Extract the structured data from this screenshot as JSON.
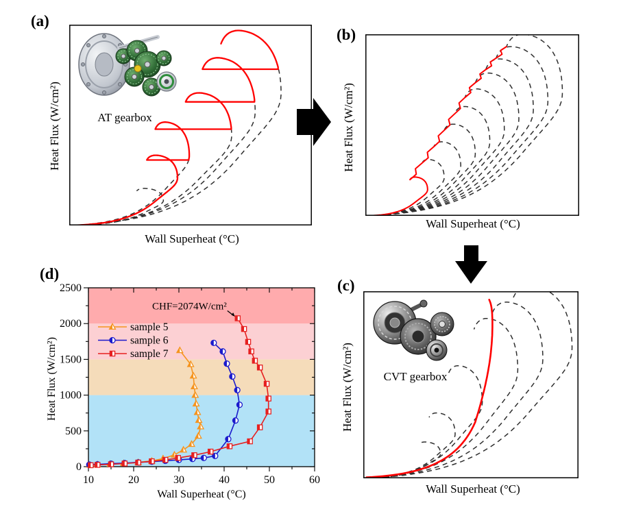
{
  "colors": {
    "background": "#ffffff",
    "red_curve": "#ff0000",
    "dashed_curve": "#2e2e2e",
    "frame": "#000000",
    "arrow": "#000000",
    "sample5": "#F5941E",
    "sample6": "#1A1ACC",
    "sample7": "#E62020",
    "band_0_1000": "#B2E2F7",
    "band_1000_1500": "#F5DCBA",
    "band_1500_2000": "#FCD0D3",
    "band_2000_2500": "#FFABAD"
  },
  "panels": {
    "a": {
      "label": "(a)",
      "caption": "AT gearbox",
      "xlabel": "Wall Superheat (°C)",
      "ylabel": "Heat Flux (W/cm²)"
    },
    "b": {
      "label": "(b)",
      "xlabel": "Wall Superheat (°C)",
      "ylabel": "Heat Flux (W/cm²)"
    },
    "c": {
      "label": "(c)",
      "caption": "CVT gearbox",
      "xlabel": "Wall Superheat (°C)",
      "ylabel": "Heat Flux (W/cm²)"
    },
    "d": {
      "label": "(d)",
      "xlabel": "Wall Superheat (°C)",
      "ylabel": "Heat Flux (W/cm²)"
    }
  },
  "chart_data": [
    {
      "panel": "a",
      "type": "line",
      "style": "schematic",
      "title": "",
      "xlabel": "Wall Superheat (°C)",
      "ylabel": "Heat Flux (W/cm²)",
      "description": "Family of dashed boiling curves; red stepwise path climbs each curve to its CHF tip then jumps horizontally to the next curve (AT gearbox stepped operation).",
      "red_mode": "staircase",
      "red_start_curve": 2,
      "curves_sx": [
        0.4,
        0.46,
        0.51,
        0.69,
        0.79,
        0.9
      ],
      "curves_sy": [
        0.19,
        0.36,
        0.53,
        0.68,
        0.86,
        1.0
      ],
      "axes_numeric": false,
      "grid": false
    },
    {
      "panel": "b",
      "type": "line",
      "style": "schematic",
      "title": "",
      "xlabel": "Wall Superheat (°C)",
      "ylabel": "Heat Flux (W/cm²)",
      "description": "Ten dashed boiling curves; red jagged zigzag line climbs through the successive CHF tips (continuously varying operation).",
      "red_mode": "zigzag",
      "curves_sx": [
        0.3,
        0.38,
        0.46,
        0.53,
        0.6,
        0.67,
        0.74,
        0.81,
        0.88,
        0.95
      ],
      "curves_sy": [
        0.22,
        0.32,
        0.42,
        0.52,
        0.62,
        0.72,
        0.81,
        0.89,
        0.96,
        1.03
      ],
      "axes_numeric": false,
      "grid": false
    },
    {
      "panel": "c",
      "type": "line",
      "style": "schematic",
      "title": "",
      "xlabel": "Wall Superheat (°C)",
      "ylabel": "Heat Flux (W/cm²)",
      "description": "Dashed boiling curves with a single smooth steep red boiling curve (CVT gearbox continuous operation).",
      "red_mode": "smooth",
      "curves_sx": [
        0.37,
        0.44,
        0.57,
        0.74,
        0.86,
        1.0
      ],
      "curves_sy": [
        0.2,
        0.36,
        0.62,
        0.88,
        0.97,
        1.06
      ],
      "axes_numeric": false,
      "grid": false
    },
    {
      "panel": "d",
      "type": "scatter-line",
      "title": "",
      "xlabel": "Wall Superheat (°C)",
      "ylabel": "Heat Flux (W/cm²)",
      "xlim": [
        10,
        60
      ],
      "ylim": [
        0,
        2500
      ],
      "xticks": [
        10,
        20,
        30,
        40,
        50,
        60
      ],
      "yticks": [
        0,
        500,
        1000,
        1500,
        2000,
        2500
      ],
      "x_minor_step": 5,
      "y_minor_step": 250,
      "grid": false,
      "legend_position": "upper-left",
      "bands": [
        {
          "y0": 0,
          "y1": 1000,
          "color": "#B2E2F7"
        },
        {
          "y0": 1000,
          "y1": 1500,
          "color": "#F5DCBA"
        },
        {
          "y0": 1500,
          "y1": 2000,
          "color": "#FCD0D3"
        },
        {
          "y0": 2000,
          "y1": 2500,
          "color": "#FFABAD"
        }
      ],
      "series": [
        {
          "name": "sample 5",
          "color": "#F5941E",
          "marker": "triangle",
          "points": [
            [
              10.3,
              25
            ],
            [
              12,
              30
            ],
            [
              14.8,
              38
            ],
            [
              17.8,
              47
            ],
            [
              21,
              60
            ],
            [
              24,
              80
            ],
            [
              26.5,
              112
            ],
            [
              29,
              165
            ],
            [
              31,
              235
            ],
            [
              32.8,
              315
            ],
            [
              34.3,
              430
            ],
            [
              34.8,
              560
            ],
            [
              34.4,
              650
            ],
            [
              34.1,
              760
            ],
            [
              33.8,
              880
            ],
            [
              33.6,
              1000
            ],
            [
              33.4,
              1120
            ],
            [
              33.2,
              1270
            ],
            [
              32.6,
              1430
            ],
            [
              30.2,
              1625
            ]
          ]
        },
        {
          "name": "sample 6",
          "color": "#1A1ACC",
          "marker": "circle",
          "points": [
            [
              10.2,
              28
            ],
            [
              12,
              32
            ],
            [
              15,
              42
            ],
            [
              18,
              50
            ],
            [
              21,
              60
            ],
            [
              24,
              70
            ],
            [
              27,
              82
            ],
            [
              30,
              95
            ],
            [
              33,
              108
            ],
            [
              35.5,
              122
            ],
            [
              38,
              150
            ],
            [
              40.9,
              385
            ],
            [
              42.5,
              645
            ],
            [
              43.4,
              865
            ],
            [
              42.9,
              1070
            ],
            [
              41.8,
              1260
            ],
            [
              40.6,
              1440
            ],
            [
              39.7,
              1610
            ],
            [
              37.7,
              1730
            ]
          ]
        },
        {
          "name": "sample 7",
          "color": "#E62020",
          "marker": "square",
          "points": [
            [
              10.5,
              20
            ],
            [
              12,
              25
            ],
            [
              15,
              33
            ],
            [
              18,
              44
            ],
            [
              21,
              57
            ],
            [
              24,
              75
            ],
            [
              27,
              95
            ],
            [
              29.8,
              122
            ],
            [
              33.4,
              160
            ],
            [
              37,
              210
            ],
            [
              41.2,
              285
            ],
            [
              45.7,
              354
            ],
            [
              47.9,
              550
            ],
            [
              49.8,
              771
            ],
            [
              49.8,
              952
            ],
            [
              49.4,
              1158
            ],
            [
              47.9,
              1386
            ],
            [
              46.8,
              1481
            ],
            [
              46,
              1611
            ],
            [
              45.3,
              1744
            ],
            [
              44.4,
              1924
            ],
            [
              43,
              2074
            ]
          ]
        }
      ],
      "annotation": {
        "text": "CHF=2074W/cm²",
        "target_point": [
          43,
          2074
        ]
      }
    }
  ]
}
